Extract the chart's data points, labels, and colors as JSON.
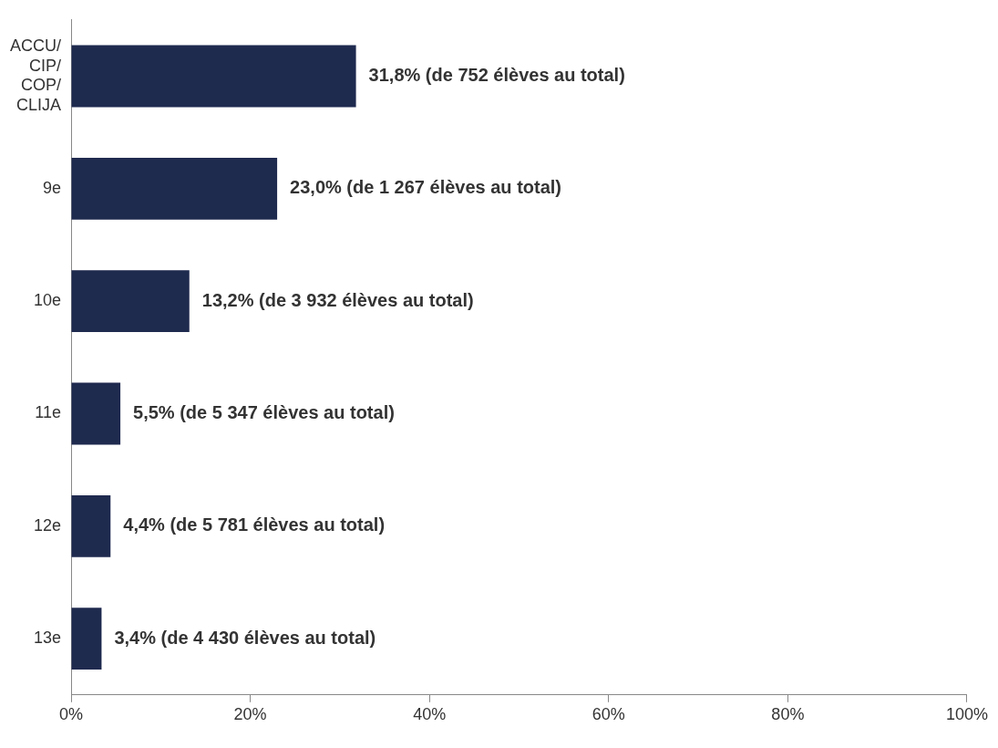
{
  "chart_data": {
    "type": "bar",
    "orientation": "horizontal",
    "categories": [
      "ACCU/CIP/COP/CLIJA",
      "9e",
      "10e",
      "11e",
      "12e",
      "13e"
    ],
    "values": [
      31.8,
      23.0,
      13.2,
      5.5,
      4.4,
      3.4
    ],
    "value_labels": [
      "31,8% (de 752 élèves au total)",
      "23,0% (de 1 267 élèves au total)",
      "13,2% (de 3 932 élèves au total)",
      "5,5% (de 5 347 élèves au total)",
      "4,4% (de 5 781 élèves au total)",
      "3,4% (de 4 430 élèves au total)"
    ],
    "color": "#1f2a4f",
    "xlim": [
      0,
      100
    ],
    "xticks": [
      {
        "value": 0,
        "label": "0%"
      },
      {
        "value": 20,
        "label": "20%"
      },
      {
        "value": 40,
        "label": "40%"
      },
      {
        "value": 60,
        "label": "60%"
      },
      {
        "value": 80,
        "label": "80%"
      },
      {
        "value": 100,
        "label": "100%"
      }
    ],
    "grid": false,
    "legend": false
  }
}
